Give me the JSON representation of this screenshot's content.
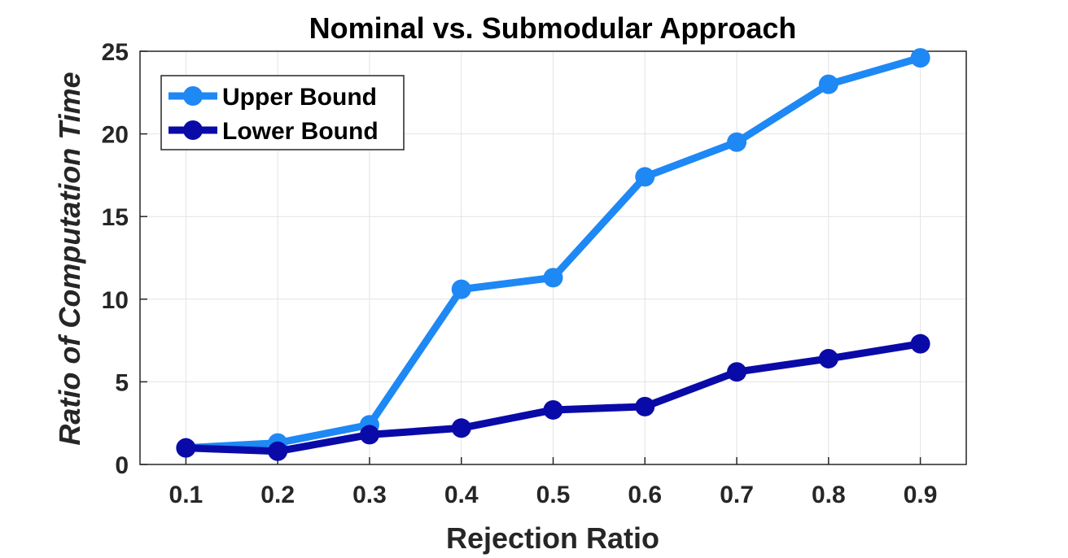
{
  "chart_data": {
    "type": "line",
    "title": "Nominal vs. Submodular Approach",
    "xlabel": "Rejection Ratio",
    "ylabel": "Ratio of Computation Time",
    "x": [
      0.1,
      0.2,
      0.3,
      0.4,
      0.5,
      0.6,
      0.7,
      0.8,
      0.9
    ],
    "x_tick_labels": [
      "0.1",
      "0.2",
      "0.3",
      "0.4",
      "0.5",
      "0.6",
      "0.7",
      "0.8",
      "0.9"
    ],
    "y_ticks": [
      0,
      5,
      10,
      15,
      20,
      25
    ],
    "y_tick_labels": [
      "0",
      "5",
      "10",
      "15",
      "20",
      "25"
    ],
    "xlim": [
      0.05,
      0.95
    ],
    "ylim": [
      0,
      25
    ],
    "grid": true,
    "legend_position": "top-left",
    "series": [
      {
        "name": "Upper Bound",
        "color": "#1e88f5",
        "values": [
          1.0,
          1.3,
          2.4,
          10.6,
          11.3,
          17.4,
          19.5,
          23.0,
          24.6
        ]
      },
      {
        "name": "Lower Bound",
        "color": "#0a0aa8",
        "values": [
          1.0,
          0.8,
          1.8,
          2.2,
          3.3,
          3.5,
          5.6,
          6.4,
          7.3
        ]
      }
    ]
  }
}
